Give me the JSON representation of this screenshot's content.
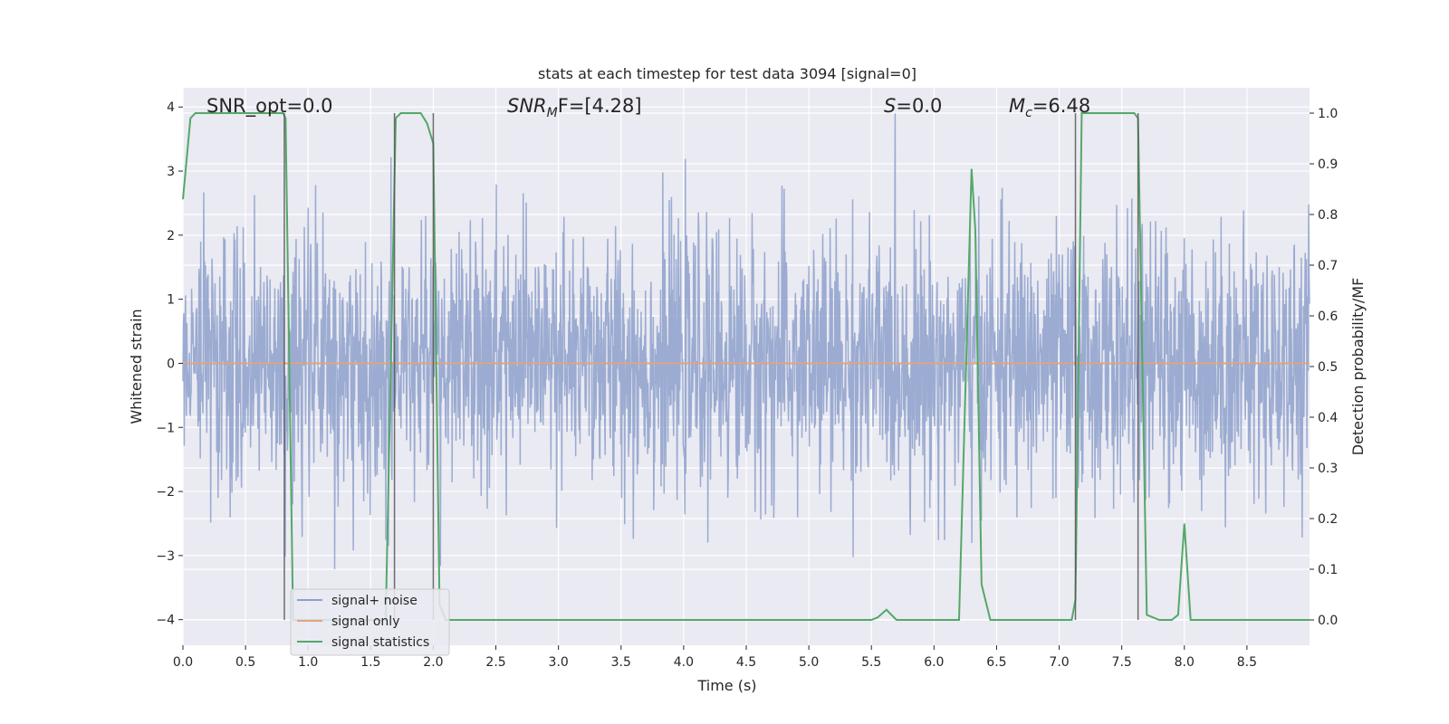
{
  "chart_data": {
    "type": "line",
    "title": "stats at each timestep for test data 3094 [signal=0]",
    "xlabel": "Time (s)",
    "ylabel_left": "Whitened strain",
    "ylabel_right": "Detection probability/MF",
    "xlim": [
      0.0,
      9.0
    ],
    "ylim_left": [
      -4.4,
      4.3
    ],
    "ylim_right": [
      -0.05,
      1.05
    ],
    "xticks": [
      0.0,
      0.5,
      1.0,
      1.5,
      2.0,
      2.5,
      3.0,
      3.5,
      4.0,
      4.5,
      5.0,
      5.5,
      6.0,
      6.5,
      7.0,
      7.5,
      8.0,
      8.5
    ],
    "xtick_labels": [
      "0.0",
      "0.5",
      "1.0",
      "1.5",
      "2.0",
      "2.5",
      "3.0",
      "3.5",
      "4.0",
      "4.5",
      "5.0",
      "5.5",
      "6.0",
      "6.5",
      "7.0",
      "7.5",
      "8.0",
      "8.5"
    ],
    "yticks_left": [
      4,
      3,
      2,
      1,
      0,
      -1,
      -2,
      -3,
      -4
    ],
    "ytick_labels_left": [
      "4",
      "3",
      "2",
      "1",
      "0",
      "−1",
      "−2",
      "−3",
      "−4"
    ],
    "yticks_right": [
      1.0,
      0.9,
      0.8,
      0.7,
      0.6,
      0.5,
      0.4,
      0.3,
      0.2,
      0.1,
      0.0
    ],
    "ytick_labels_right": [
      "1.0",
      "0.9",
      "0.8",
      "0.7",
      "0.6",
      "0.5",
      "0.4",
      "0.3",
      "0.2",
      "0.1",
      "0.0"
    ],
    "grid": true,
    "legend_position": "lower-left",
    "annotations": {
      "snr_opt": "SNR_opt=0.0",
      "snr_mf_main": "SNR",
      "snr_mf_sub": "M",
      "snr_mf_rest": "F=[4.28]",
      "s_main": "S",
      "s_rest": "=0.0",
      "mc_main": "M",
      "mc_sub": "c",
      "mc_rest": "=6.48"
    },
    "series": [
      {
        "name": "signal+ noise",
        "axis": "left",
        "color": "#8da0cb",
        "style": "noise",
        "amplitude_std": 1.0,
        "typical_range": [
          -2.2,
          2.3
        ],
        "extremes": [
          -4.0,
          3.9
        ]
      },
      {
        "name": "signal only",
        "axis": "left",
        "color": "#e1a47f",
        "x": [
          0.0,
          9.0
        ],
        "y": [
          0.0,
          0.0
        ]
      },
      {
        "name": "signal statistics",
        "axis": "right",
        "color": "#55a868",
        "x": [
          0.0,
          0.06,
          0.1,
          0.2,
          0.4,
          0.6,
          0.7,
          0.8,
          0.82,
          0.88,
          0.95,
          1.0,
          1.5,
          1.62,
          1.7,
          1.74,
          1.8,
          1.9,
          1.95,
          2.0,
          2.05,
          2.1,
          2.5,
          3.0,
          4.0,
          5.0,
          5.5,
          5.55,
          5.62,
          5.7,
          6.0,
          6.2,
          6.3,
          6.33,
          6.38,
          6.45,
          6.6,
          7.0,
          7.1,
          7.13,
          7.18,
          7.3,
          7.6,
          7.63,
          7.7,
          7.8,
          7.9,
          7.95,
          8.0,
          8.05,
          8.5,
          9.0
        ],
        "y": [
          0.83,
          0.99,
          1.0,
          1.0,
          1.0,
          1.0,
          1.0,
          1.0,
          0.99,
          0.0,
          0.0,
          0.0,
          0.0,
          0.0,
          0.99,
          1.0,
          1.0,
          1.0,
          0.98,
          0.94,
          0.03,
          0.0,
          0.0,
          0.0,
          0.0,
          0.0,
          0.0,
          0.005,
          0.02,
          0.0,
          0.0,
          0.0,
          0.89,
          0.77,
          0.07,
          0.0,
          0.0,
          0.0,
          0.0,
          0.04,
          1.0,
          1.0,
          1.0,
          0.99,
          0.01,
          0.0,
          0.0,
          0.01,
          0.19,
          0.0,
          0.0,
          0.0
        ]
      }
    ],
    "vertical_markers": [
      0.81,
      1.69,
      2.0,
      7.13,
      7.63
    ]
  }
}
